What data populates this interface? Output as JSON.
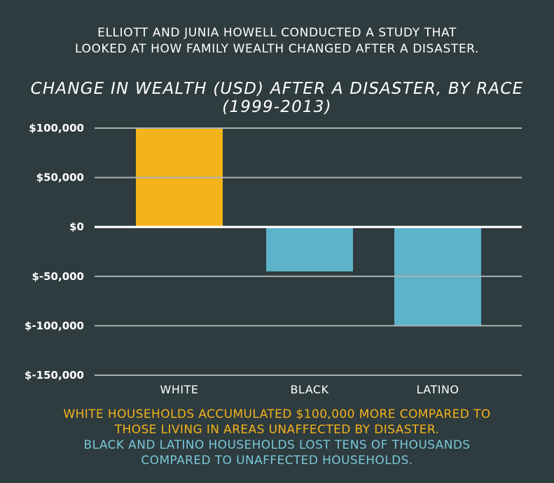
{
  "intro": {
    "line1": "ELLIOTT AND JUNIA HOWELL CONDUCTED A STUDY THAT",
    "line2": "LOOKED AT HOW FAMILY WEALTH CHANGED AFTER A DISASTER."
  },
  "footer": {
    "line1": "WHITE HOUSEHOLDS ACCUMULATED $100,000 MORE COMPARED TO",
    "line2": "THOSE LIVING IN AREAS UNAFFECTED BY DISASTER.",
    "line3": "BLACK AND LATINO HOUSEHOLDS LOST TENS OF THOUSANDS",
    "line4": "COMPARED TO UNAFFECTED HOUSEHOLDS."
  },
  "colors": {
    "background": "#2e3b3f",
    "white_bar": "#f4b31a",
    "other_bars": "#5db3c9",
    "footer_highlight": "#f4b31a",
    "footer_secondary": "#79c8d8"
  },
  "chart_data": {
    "type": "bar",
    "title_line1": "CHANGE IN WEALTH (USD) AFTER A DISASTER, BY RACE",
    "title_line2": "(1999-2013)",
    "categories": [
      "WHITE",
      "BLACK",
      "LATINO"
    ],
    "values": [
      100000,
      -45000,
      -100000
    ],
    "bar_colors": [
      "#f4b31a",
      "#5db3c9",
      "#5db3c9"
    ],
    "ylim": [
      -150000,
      100000
    ],
    "yticks": [
      100000,
      50000,
      0,
      -50000,
      -100000,
      -150000
    ],
    "ytick_labels": [
      "$100,000",
      "$50,000",
      "$0",
      "$-50,000",
      "$-100,000",
      "$-150,000"
    ],
    "grid": true,
    "xlabel": "",
    "ylabel": ""
  }
}
